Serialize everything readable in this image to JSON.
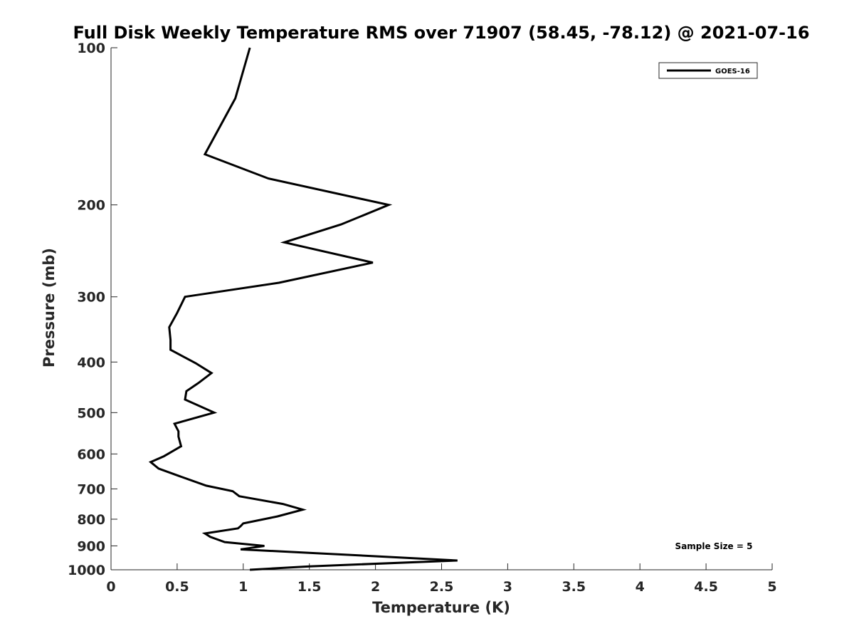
{
  "chart_data": {
    "type": "line",
    "title": "Full Disk Weekly Temperature RMS over 71907 (58.45, -78.12) @ 2021-07-16",
    "xlabel": "Temperature (K)",
    "ylabel": "Pressure (mb)",
    "xlim": [
      0,
      5
    ],
    "ylim": [
      100,
      1000
    ],
    "y_scale": "log",
    "y_reversed": true,
    "x_ticks": [
      0,
      0.5,
      1,
      1.5,
      2,
      2.5,
      3,
      3.5,
      4,
      4.5,
      5
    ],
    "x_tick_labels": [
      "0",
      "0.5",
      "1",
      "1.5",
      "2",
      "2.5",
      "3",
      "3.5",
      "4",
      "4.5",
      "5"
    ],
    "y_ticks": [
      100,
      200,
      300,
      400,
      500,
      600,
      700,
      800,
      900,
      1000
    ],
    "y_tick_labels": [
      "100",
      "200",
      "300",
      "400",
      "500",
      "600",
      "700",
      "800",
      "900",
      "1000"
    ],
    "grid": false,
    "legend_position": "top-right",
    "annotation": "Sample Size = 5",
    "series": [
      {
        "name": "GOES-16",
        "color": "#000000",
        "points": [
          [
            1.05,
            100
          ],
          [
            0.94,
            125
          ],
          [
            0.71,
            160
          ],
          [
            1.19,
            178
          ],
          [
            2.1,
            200
          ],
          [
            1.74,
            218
          ],
          [
            1.31,
            236
          ],
          [
            1.98,
            258
          ],
          [
            1.27,
            282
          ],
          [
            0.56,
            300
          ],
          [
            0.5,
            322
          ],
          [
            0.44,
            343
          ],
          [
            0.45,
            363
          ],
          [
            0.45,
            379
          ],
          [
            0.64,
            402
          ],
          [
            0.76,
            420
          ],
          [
            0.66,
            439
          ],
          [
            0.57,
            455
          ],
          [
            0.56,
            472
          ],
          [
            0.78,
            500
          ],
          [
            0.48,
            525
          ],
          [
            0.51,
            543
          ],
          [
            0.51,
            556
          ],
          [
            0.53,
            580
          ],
          [
            0.4,
            606
          ],
          [
            0.3,
            622
          ],
          [
            0.36,
            640
          ],
          [
            0.52,
            662
          ],
          [
            0.72,
            690
          ],
          [
            0.92,
            707
          ],
          [
            0.97,
            723
          ],
          [
            1.3,
            748
          ],
          [
            1.45,
            767
          ],
          [
            1.26,
            790
          ],
          [
            1.0,
            815
          ],
          [
            0.98,
            825
          ],
          [
            0.96,
            833
          ],
          [
            0.71,
            852
          ],
          [
            0.75,
            865
          ],
          [
            0.86,
            885
          ],
          [
            1.16,
            900
          ],
          [
            1.1,
            905
          ],
          [
            0.98,
            914
          ],
          [
            1.5,
            928
          ],
          [
            2.62,
            960
          ],
          [
            1.5,
            985
          ],
          [
            1.05,
            1000
          ]
        ]
      }
    ]
  }
}
